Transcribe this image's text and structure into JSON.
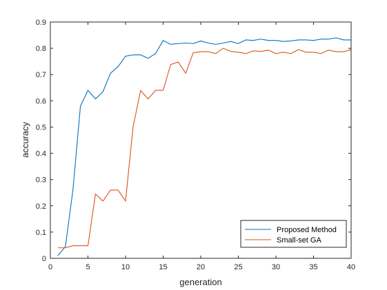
{
  "chart_data": {
    "type": "line",
    "title": "",
    "xlabel": "generation",
    "ylabel": "accuracy",
    "xlim": [
      0,
      40
    ],
    "ylim": [
      0,
      0.9
    ],
    "xticks": [
      0,
      5,
      10,
      15,
      20,
      25,
      30,
      35,
      40
    ],
    "yticks": [
      0,
      0.1,
      0.2,
      0.3,
      0.4,
      0.5,
      0.6,
      0.7,
      0.8,
      0.9
    ],
    "grid": false,
    "legend_position": "bottom-right",
    "x": [
      1,
      2,
      3,
      4,
      5,
      6,
      7,
      8,
      9,
      10,
      11,
      12,
      13,
      14,
      15,
      16,
      17,
      18,
      19,
      20,
      21,
      22,
      23,
      24,
      25,
      26,
      27,
      28,
      29,
      30,
      31,
      32,
      33,
      34,
      35,
      36,
      37,
      38,
      39,
      40
    ],
    "series": [
      {
        "name": "Proposed Method",
        "color": "#0072BD",
        "values": [
          0.01,
          0.045,
          0.26,
          0.58,
          0.64,
          0.607,
          0.635,
          0.705,
          0.73,
          0.77,
          0.775,
          0.775,
          0.762,
          0.78,
          0.83,
          0.815,
          0.818,
          0.82,
          0.818,
          0.828,
          0.82,
          0.815,
          0.82,
          0.826,
          0.818,
          0.832,
          0.83,
          0.835,
          0.83,
          0.83,
          0.826,
          0.828,
          0.832,
          0.832,
          0.83,
          0.835,
          0.835,
          0.84,
          0.832,
          0.832
        ]
      },
      {
        "name": "Small-set GA",
        "color": "#D95319",
        "values": [
          0.04,
          0.04,
          0.048,
          0.048,
          0.048,
          0.245,
          0.218,
          0.26,
          0.26,
          0.218,
          0.5,
          0.64,
          0.607,
          0.64,
          0.64,
          0.738,
          0.748,
          0.705,
          0.783,
          0.787,
          0.787,
          0.78,
          0.8,
          0.788,
          0.785,
          0.78,
          0.79,
          0.788,
          0.793,
          0.78,
          0.785,
          0.78,
          0.795,
          0.785,
          0.785,
          0.78,
          0.793,
          0.787,
          0.787,
          0.795
        ]
      }
    ]
  }
}
